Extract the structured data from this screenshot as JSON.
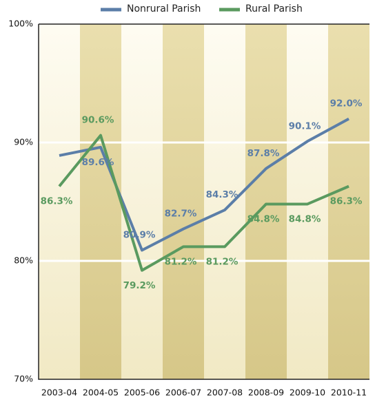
{
  "chart_data": {
    "type": "line",
    "categories": [
      "2003-04",
      "2004-05",
      "2005-06",
      "2006-07",
      "2007-08",
      "2008-09",
      "2009-10",
      "2010-11"
    ],
    "series": [
      {
        "name": "Nonrural Parish",
        "color": "#5b7ea8",
        "values": [
          88.9,
          89.6,
          80.9,
          82.7,
          84.3,
          87.8,
          90.1,
          92.0
        ],
        "value_labels": [
          null,
          "89.6%",
          "80.9%",
          "82.7%",
          "84.3%",
          "87.8%",
          "90.1%",
          "92.0%"
        ]
      },
      {
        "name": "Rural Parish",
        "color": "#5a9a5f",
        "values": [
          86.3,
          90.6,
          79.2,
          81.2,
          81.2,
          84.8,
          84.8,
          86.3
        ],
        "value_labels": [
          "86.3%",
          "90.6%",
          "79.2%",
          "81.2%",
          "81.2%",
          "84.8%",
          "84.8%",
          "86.3%"
        ]
      }
    ],
    "ylim": [
      70,
      100
    ],
    "yticks": [
      {
        "value": 70,
        "label": "70%"
      },
      {
        "value": 80,
        "label": "80%"
      },
      {
        "value": 90,
        "label": "90%"
      },
      {
        "value": 100,
        "label": "100%"
      }
    ],
    "grid": true
  }
}
